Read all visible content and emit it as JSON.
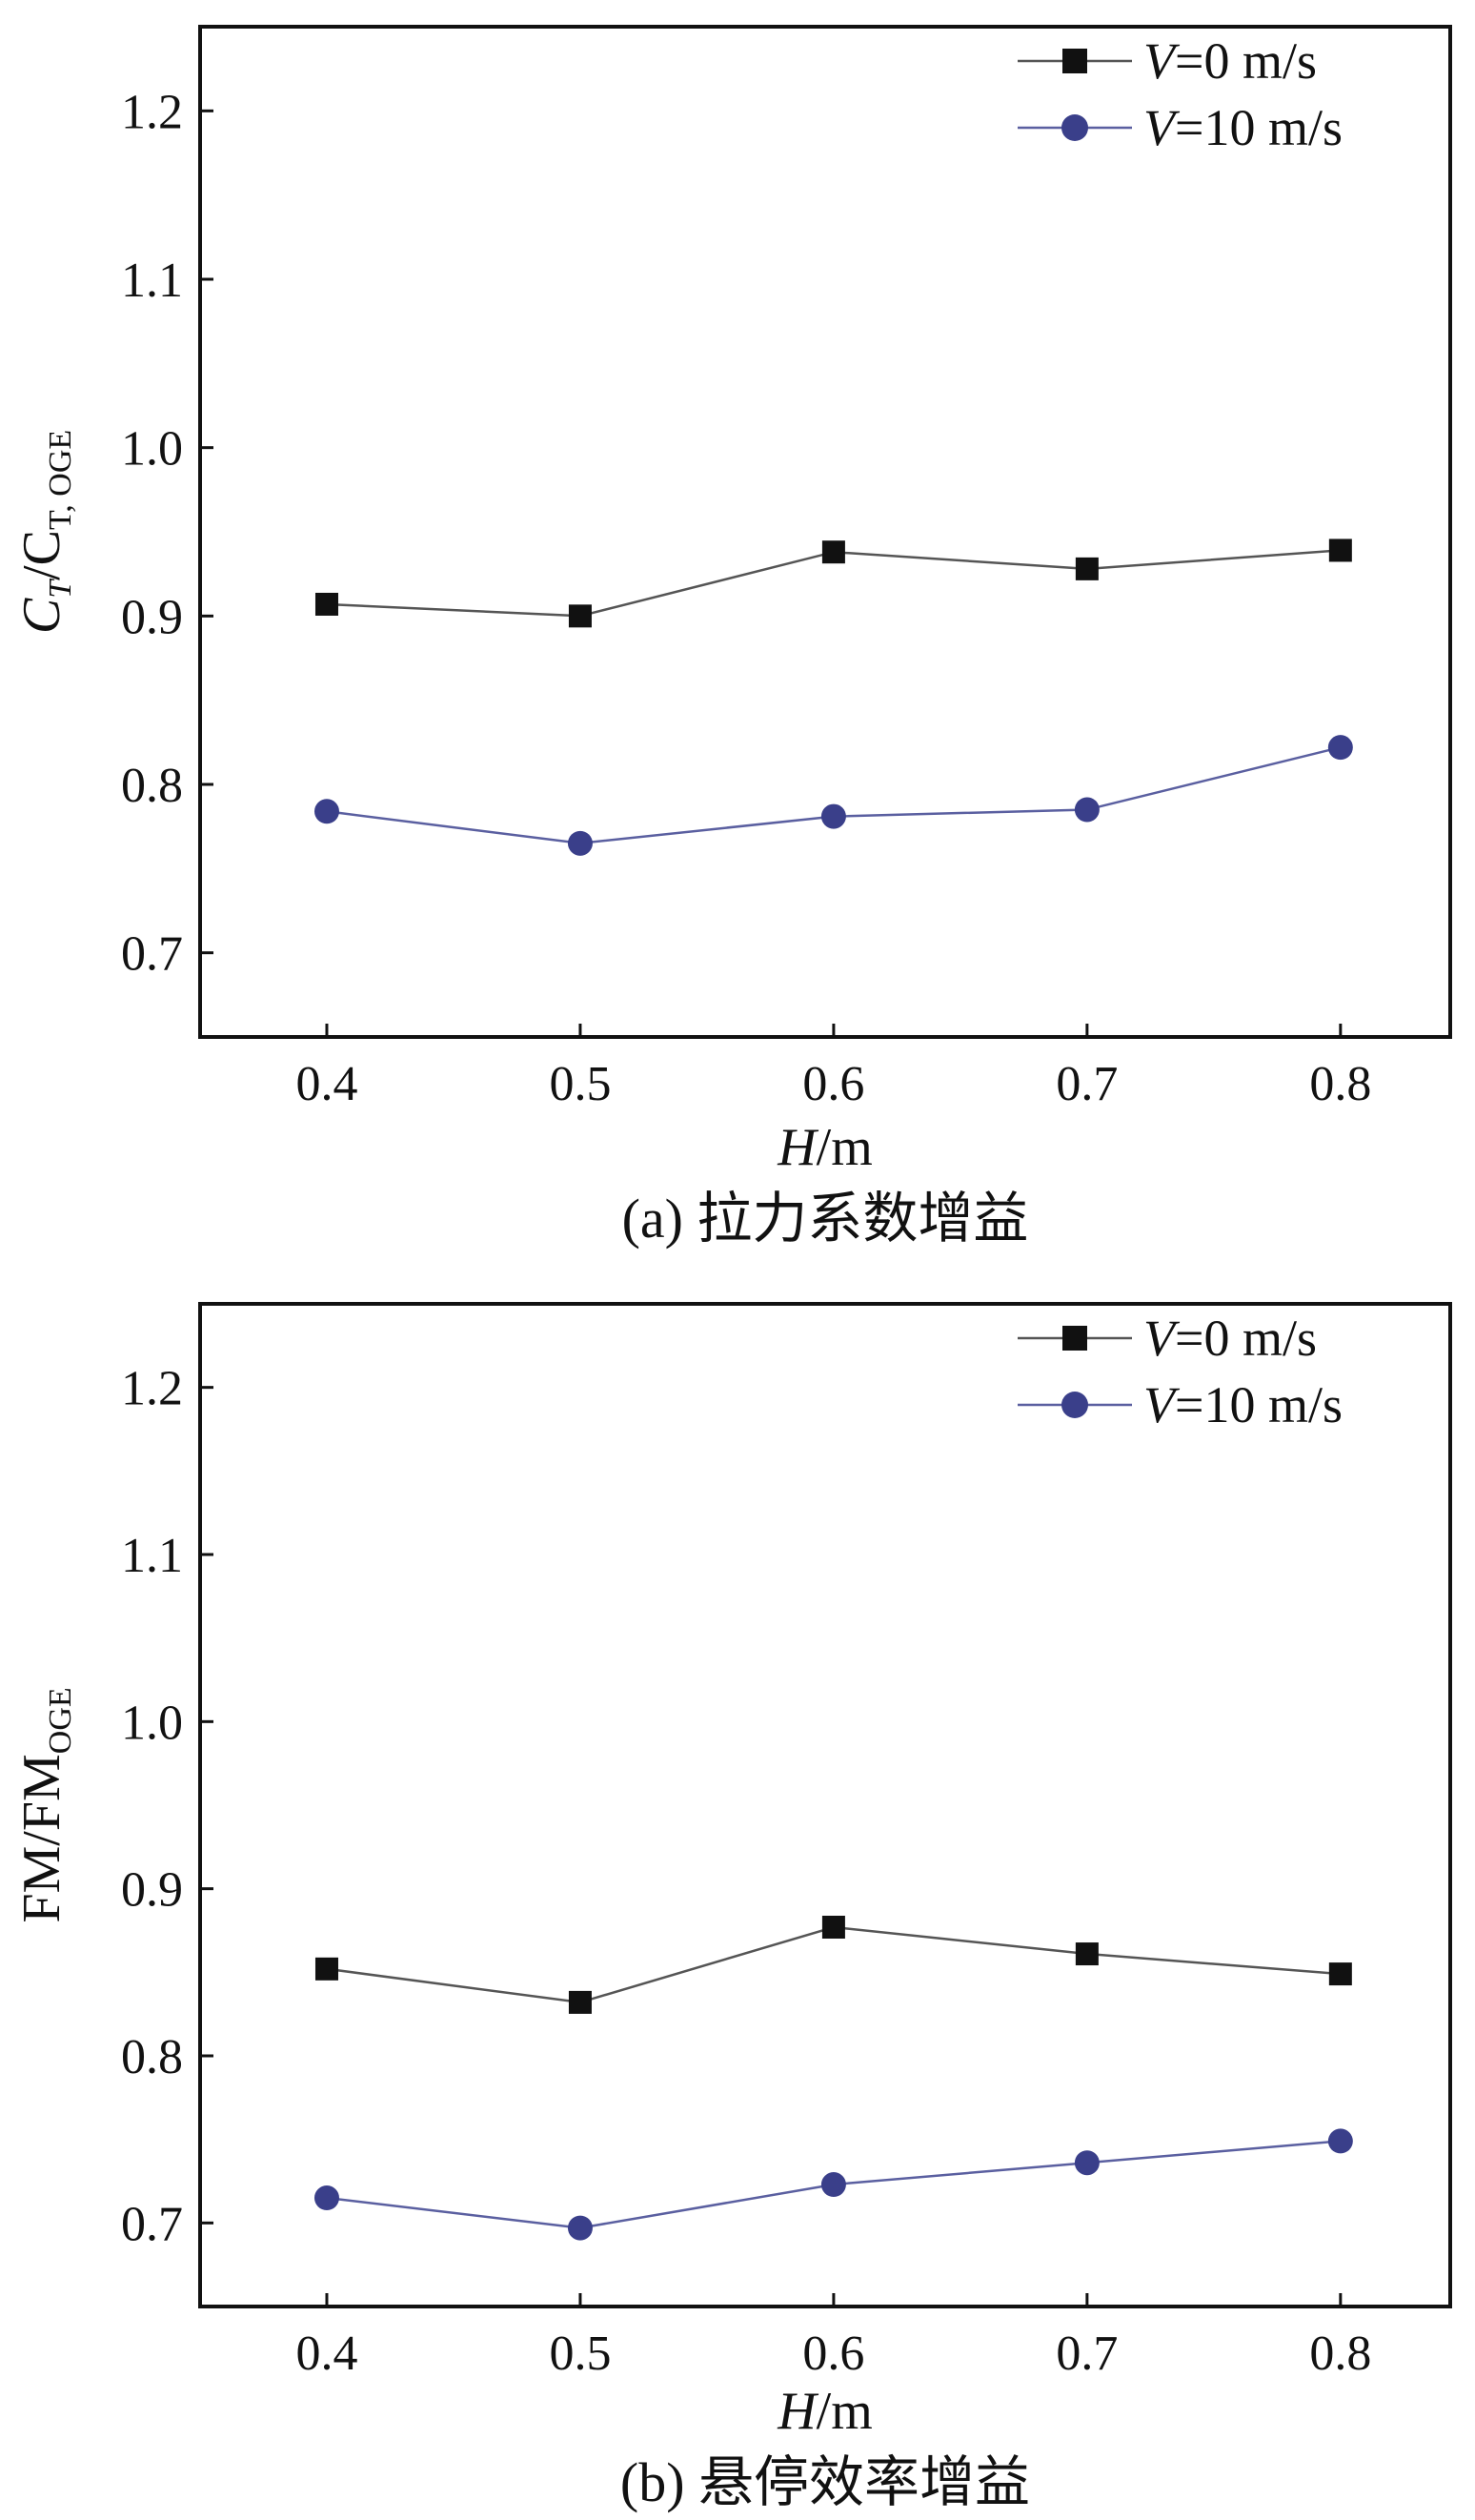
{
  "chart_data": [
    {
      "type": "line",
      "caption": "(a) 拉力系数增益",
      "ylabel": {
        "main": "C",
        "sub1": "T",
        "slash": "/C",
        "sub2": "T, OGE"
      },
      "xlabel": {
        "var": "H",
        "unit": "/m"
      },
      "x": [
        0.4,
        0.5,
        0.6,
        0.7,
        0.8
      ],
      "xticks": [
        "0.4",
        "0.5",
        "0.6",
        "0.7",
        "0.8"
      ],
      "yticks": [
        "0.7",
        "0.8",
        "0.9",
        "1.0",
        "1.1",
        "1.2"
      ],
      "xlim": [
        0.35,
        0.8433
      ],
      "ylim": [
        0.65,
        1.25
      ],
      "grid": false,
      "legend_position": "top-right",
      "series": [
        {
          "name": "V=0 m/s",
          "var": "V",
          "rest": "=0 m/s",
          "marker": "square",
          "color": "#111111",
          "line_color": "#555555",
          "values": [
            0.907,
            0.9,
            0.938,
            0.928,
            0.939
          ]
        },
        {
          "name": "V=10 m/s",
          "var": "V",
          "rest": "=10 m/s",
          "marker": "circle",
          "color": "#3a3f8a",
          "line_color": "#5a5fa0",
          "values": [
            0.784,
            0.765,
            0.781,
            0.785,
            0.822
          ]
        }
      ]
    },
    {
      "type": "line",
      "caption": "(b) 悬停效率增益",
      "ylabel": {
        "main": "FM/FM",
        "sub": "OGE"
      },
      "xlabel": {
        "var": "H",
        "unit": "/m"
      },
      "x": [
        0.4,
        0.5,
        0.6,
        0.7,
        0.8
      ],
      "xticks": [
        "0.4",
        "0.5",
        "0.6",
        "0.7",
        "0.8"
      ],
      "yticks": [
        "0.7",
        "0.8",
        "0.9",
        "1.0",
        "1.1",
        "1.2"
      ],
      "xlim": [
        0.35,
        0.8433
      ],
      "ylim": [
        0.65,
        1.25
      ],
      "grid": false,
      "legend_position": "top-right",
      "series": [
        {
          "name": "V=0 m/s",
          "var": "V",
          "rest": "=0 m/s",
          "marker": "square",
          "color": "#111111",
          "line_color": "#555555",
          "values": [
            0.852,
            0.832,
            0.877,
            0.861,
            0.849
          ]
        },
        {
          "name": "V=10 m/s",
          "var": "V",
          "rest": "=10 m/s",
          "marker": "circle",
          "color": "#3a3f8a",
          "line_color": "#5a5fa0",
          "values": [
            0.715,
            0.697,
            0.723,
            0.736,
            0.749
          ]
        }
      ]
    }
  ]
}
